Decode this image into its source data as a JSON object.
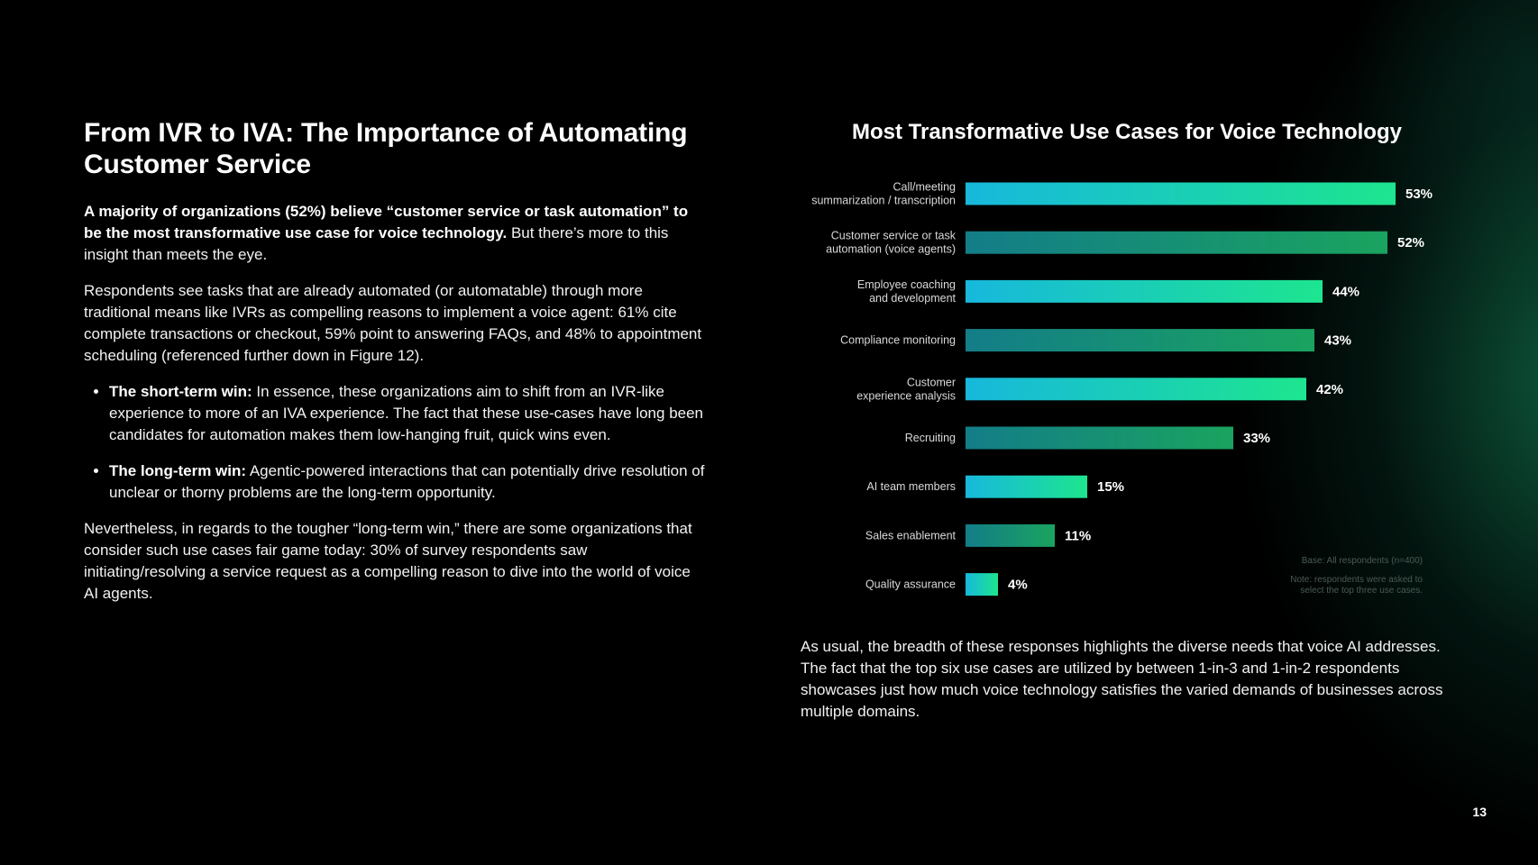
{
  "heading": "From IVR to IVA: The Importance of Automating Customer Service",
  "intro_bold": "A majority of organizations (52%) believe “customer service or task automation” to be the most transformative use case for voice technology.",
  "intro_rest": " But there’s more to this insight than meets the eye.",
  "para2": "Respondents see tasks that are already automated (or automatable) through more traditional means like IVRs as compelling reasons to implement a voice agent: 61% cite complete transactions or checkout, 59% point to answering FAQs, and 48% to appointment scheduling (referenced further down in Figure 12).",
  "bullets": [
    {
      "bold": "The short-term win:",
      "text": " In essence, these organizations aim to shift from an IVR-like experience to more of an IVA experience. The fact that these use-cases have long been candidates for automation makes them low-hanging fruit, quick wins even."
    },
    {
      "bold": "The long-term win:",
      "text": " Agentic-powered interactions that can potentially drive resolution of unclear or thorny problems are the long-term opportunity."
    }
  ],
  "para3": "Nevertheless, in regards to the tougher “long-term win,” there are some organizations that consider such use cases fair game today: 30% of survey respondents saw initiating/resolving a service request as a compelling reason to dive into the world of voice AI agents.",
  "chart_data": {
    "type": "bar",
    "orientation": "horizontal",
    "title": "Most Transformative Use Cases for Voice Technology",
    "categories": [
      [
        "Call/meeting",
        "summarization / transcription"
      ],
      [
        "Customer service or task",
        "automation (voice agents)"
      ],
      [
        "Employee coaching",
        "and development"
      ],
      [
        "Compliance monitoring"
      ],
      [
        "Customer",
        "experience analysis"
      ],
      [
        "Recruiting"
      ],
      [
        "AI team members"
      ],
      [
        "Sales enablement"
      ],
      [
        "Quality assurance"
      ]
    ],
    "values": [
      53,
      52,
      44,
      43,
      42,
      33,
      15,
      11,
      4
    ],
    "value_labels": [
      "53%",
      "52%",
      "44%",
      "43%",
      "42%",
      "33%",
      "15%",
      "11%",
      "4%"
    ],
    "colors": {
      "bright": [
        "#17b8dc",
        "#1de58f"
      ],
      "dark": [
        "#137d88",
        "#1aa35f"
      ]
    },
    "base_note": "Base: All respondents (n=400)",
    "note_lines": [
      "Note: respondents were asked to",
      "select the top three use cases."
    ]
  },
  "bottom_text": "As usual, the breadth of these responses highlights the diverse needs that voice AI addresses. The fact that the top six use cases are utilized by between 1-in-3 and 1-in-2 respondents showcases just how much voice technology satisfies the varied demands of businesses across multiple domains.",
  "page_number": "13"
}
